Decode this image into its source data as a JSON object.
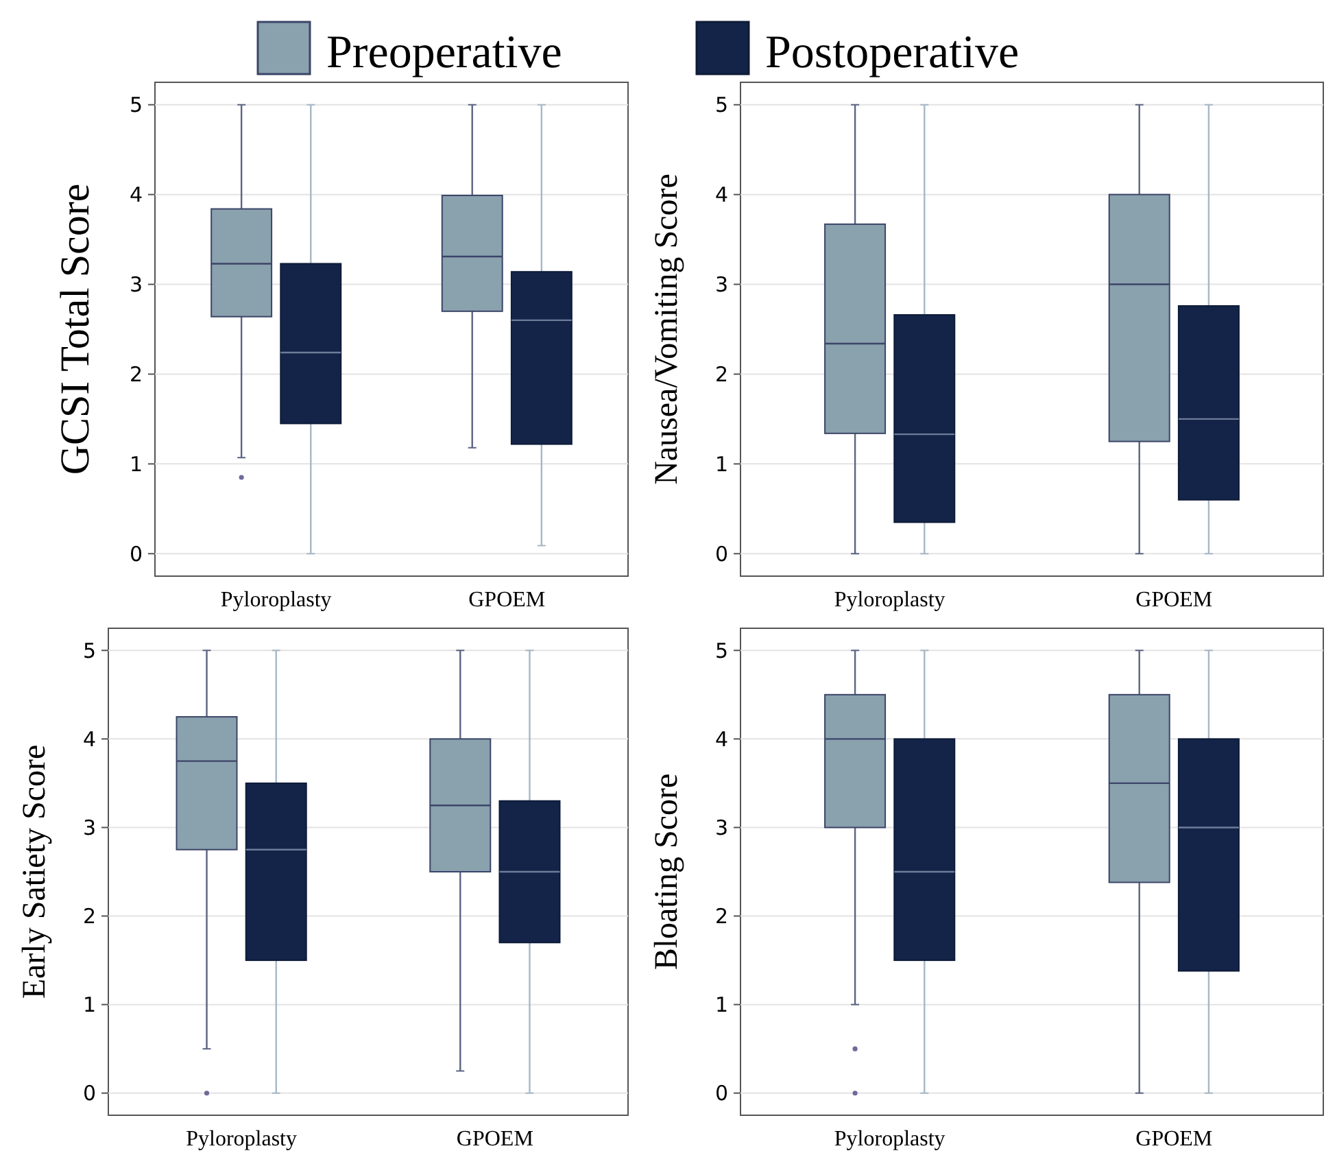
{
  "chart_data": [
    {
      "type": "box",
      "ylabel": "GCSI Total Score",
      "categories": [
        "Pyloroplasty",
        "GPOEM"
      ],
      "ylim": [
        -0.25,
        5.25
      ],
      "yticks": [
        0,
        1,
        2,
        3,
        4,
        5
      ],
      "grid": "y",
      "legend": "top",
      "series": [
        {
          "name": "Preoperative",
          "color": "#8aa1ae",
          "boxes": [
            {
              "low": 1.07,
              "q1": 2.64,
              "median": 3.23,
              "q3": 3.84,
              "high": 5,
              "outliers": [
                0.85
              ]
            },
            {
              "low": 1.18,
              "q1": 2.7,
              "median": 3.31,
              "q3": 3.99,
              "high": 5
            }
          ]
        },
        {
          "name": "Postoperative",
          "color": "#132448",
          "boxes": [
            {
              "low": 0,
              "q1": 1.45,
              "median": 2.24,
              "q3": 3.23,
              "high": 5
            },
            {
              "low": 0.09,
              "q1": 1.22,
              "median": 2.6,
              "q3": 3.14,
              "high": 5
            }
          ]
        }
      ]
    },
    {
      "type": "box",
      "ylabel": "Nausea/Vomiting Score",
      "categories": [
        "Pyloroplasty",
        "GPOEM"
      ],
      "ylim": [
        -0.25,
        5.25
      ],
      "yticks": [
        0,
        1,
        2,
        3,
        4,
        5
      ],
      "grid": "y",
      "series": [
        {
          "color": "#8aa1ae",
          "boxes": [
            {
              "low": 0,
              "q1": 1.34,
              "median": 2.34,
              "q3": 3.67,
              "high": 5
            },
            {
              "low": 0,
              "q1": 1.25,
              "median": 3,
              "q3": 4,
              "high": 5
            }
          ]
        },
        {
          "color": "#132448",
          "boxes": [
            {
              "low": 0,
              "q1": 0.35,
              "median": 1.33,
              "q3": 2.66,
              "high": 5
            },
            {
              "low": 0,
              "q1": 0.6,
              "median": 1.5,
              "q3": 2.76,
              "high": 5
            }
          ]
        }
      ]
    },
    {
      "type": "box",
      "ylabel": "Early Satiety Score",
      "categories": [
        "Pyloroplasty",
        "GPOEM"
      ],
      "ylim": [
        -0.25,
        5.25
      ],
      "yticks": [
        0,
        1,
        2,
        3,
        4,
        5
      ],
      "grid": "y",
      "series": [
        {
          "color": "#8aa1ae",
          "boxes": [
            {
              "low": 0.5,
              "q1": 2.75,
              "median": 3.75,
              "q3": 4.25,
              "high": 5,
              "outliers": [
                0
              ]
            },
            {
              "low": 0.25,
              "q1": 2.5,
              "median": 3.25,
              "q3": 4,
              "high": 5
            }
          ]
        },
        {
          "color": "#132448",
          "boxes": [
            {
              "low": 0,
              "q1": 1.5,
              "median": 2.75,
              "q3": 3.5,
              "high": 5
            },
            {
              "low": 0,
              "q1": 1.7,
              "median": 2.5,
              "q3": 3.3,
              "high": 5
            }
          ]
        }
      ]
    },
    {
      "type": "box",
      "ylabel": "Bloating Score",
      "categories": [
        "Pyloroplasty",
        "GPOEM"
      ],
      "ylim": [
        -0.25,
        5.25
      ],
      "yticks": [
        0,
        1,
        2,
        3,
        4,
        5
      ],
      "grid": "y",
      "series": [
        {
          "color": "#8aa1ae",
          "boxes": [
            {
              "low": 1,
              "q1": 3,
              "median": 4,
              "q3": 4.5,
              "high": 5,
              "outliers": [
                0.5,
                0
              ]
            },
            {
              "low": 0,
              "q1": 2.38,
              "median": 3.5,
              "q3": 4.5,
              "high": 5
            }
          ]
        },
        {
          "color": "#132448",
          "boxes": [
            {
              "low": 0,
              "q1": 1.5,
              "median": 2.5,
              "q3": 4,
              "high": 5
            },
            {
              "low": 0,
              "q1": 1.38,
              "median": 3,
              "q3": 4,
              "high": 5
            }
          ]
        }
      ]
    }
  ]
}
